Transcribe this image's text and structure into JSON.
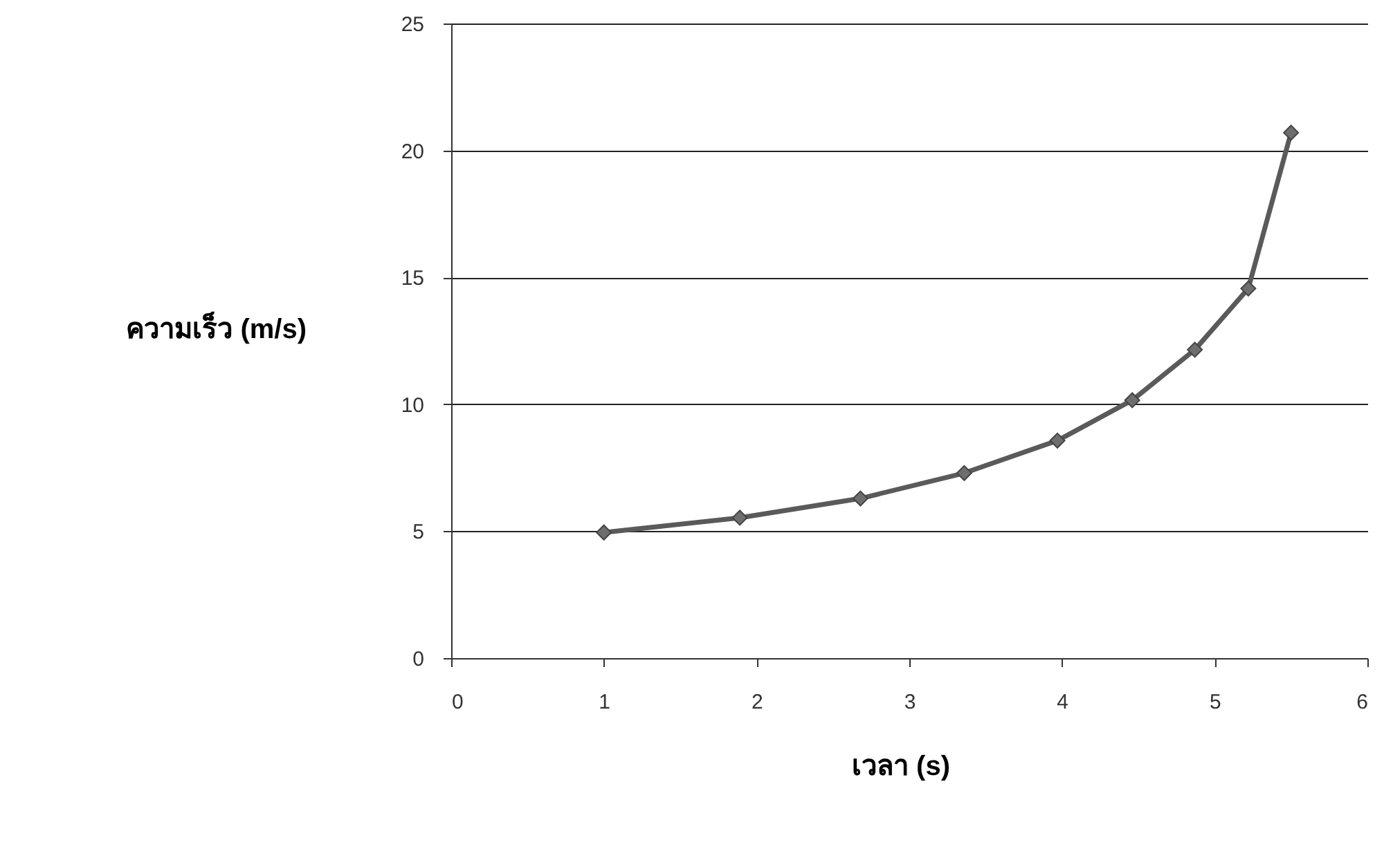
{
  "chart_data": {
    "type": "line",
    "xlabel": "เวลา (s)",
    "ylabel": "ความเร็ว (m/s)",
    "x": [
      1.0,
      1.89,
      2.68,
      3.36,
      3.97,
      4.46,
      4.87,
      5.22,
      5.5
    ],
    "series": [
      {
        "color": "#5a5a5a",
        "values": [
          4.95,
          5.53,
          6.29,
          7.29,
          8.57,
          10.16,
          12.15,
          14.56,
          20.7
        ]
      }
    ],
    "xlim": [
      0,
      6
    ],
    "xticks": [
      0,
      1,
      2,
      3,
      4,
      5,
      6
    ],
    "ylim": [
      0,
      25
    ],
    "yticks": [
      0,
      5,
      10,
      15,
      20,
      25
    ],
    "grid": "y",
    "marker": "diamond",
    "line_style": "solid"
  }
}
